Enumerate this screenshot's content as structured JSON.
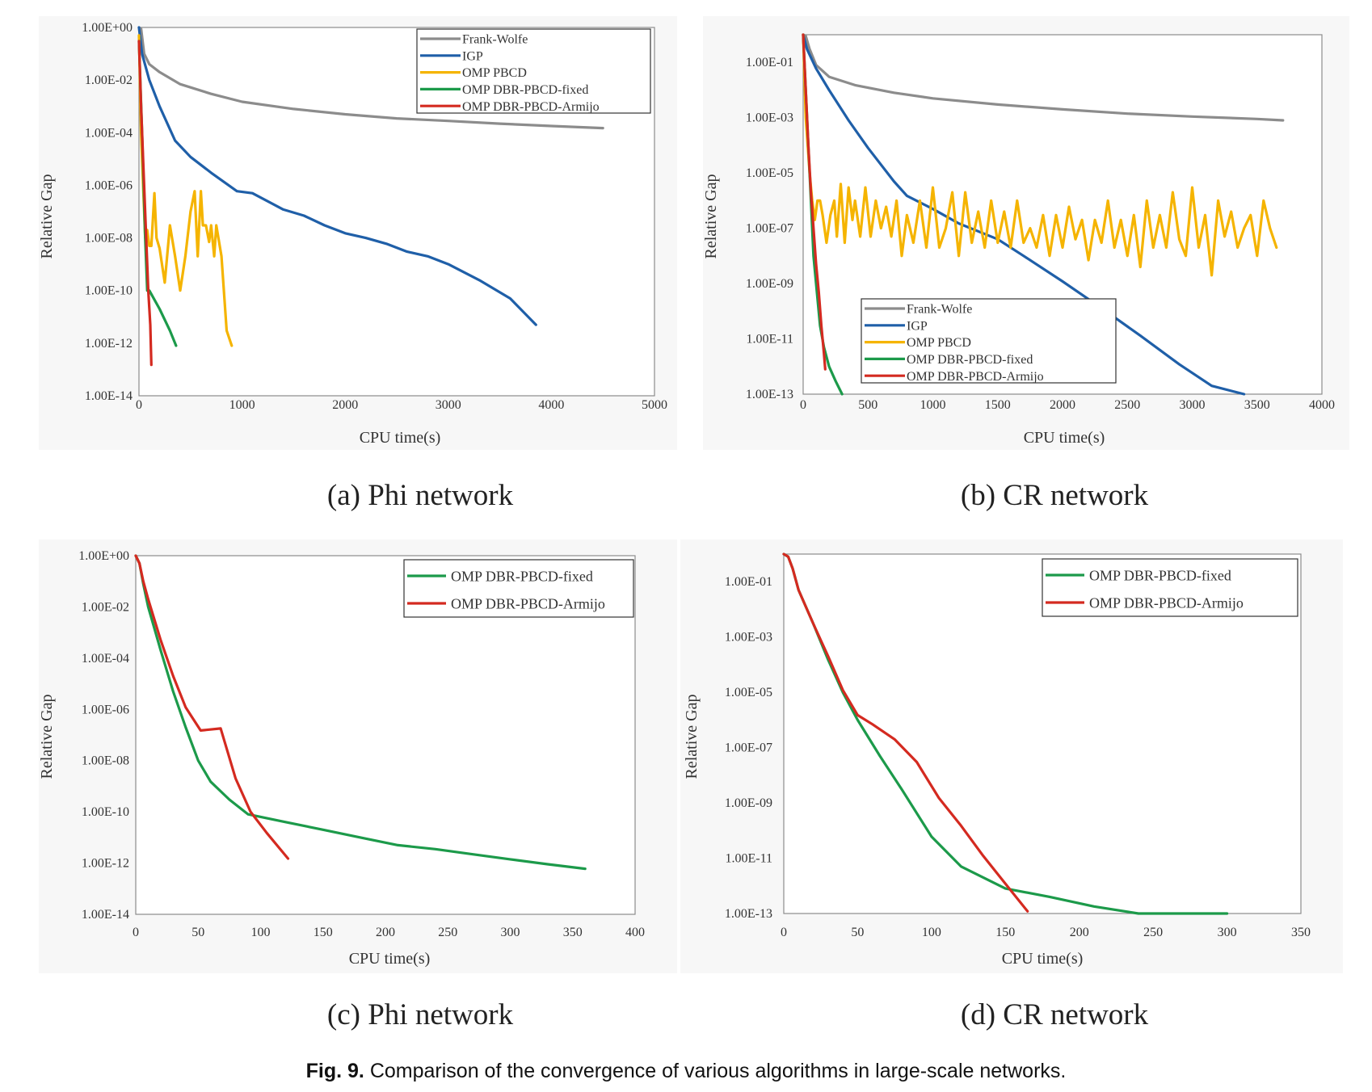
{
  "figure_caption": {
    "label": "Fig. 9.",
    "text": "Comparison of the convergence of various algorithms in large-scale networks."
  },
  "colors": {
    "Frank-Wolfe": "#8c8c8c",
    "IGP": "#1f5fa8",
    "OMP PBCD": "#f5b400",
    "OMP DBR-PBCD-fixed": "#1c9a4a",
    "OMP DBR-PBCD-Armijo": "#d42a20"
  },
  "chart_data": [
    {
      "panel": "a",
      "type": "line",
      "subtitle": "(a) Phi network",
      "xlabel": "CPU time(s)",
      "ylabel": "Relative Gap",
      "y_scale": "log",
      "xlim": [
        0,
        5000
      ],
      "ylim": [
        "1.00E-14",
        "1.00E+00"
      ],
      "xticks": [
        "0",
        "1000",
        "2000",
        "3000",
        "4000",
        "5000"
      ],
      "yticks": [
        "1.00E-14",
        "1.00E-12",
        "1.00E-10",
        "1.00E-08",
        "1.00E-06",
        "1.00E-04",
        "1.00E-02",
        "1.00E+00"
      ],
      "legend_position": "top-right",
      "legend": [
        "Frank-Wolfe",
        "IGP",
        "OMP PBCD",
        "OMP DBR-PBCD-fixed",
        "OMP DBR-PBCD-Armijo"
      ],
      "series": [
        {
          "name": "Frank-Wolfe",
          "x": [
            0,
            20,
            50,
            100,
            200,
            400,
            700,
            1000,
            1500,
            2000,
            2500,
            3000,
            3500,
            4000,
            4500
          ],
          "y": [
            1,
            0.9,
            0.1,
            0.04,
            0.02,
            0.007,
            0.003,
            0.0015,
            0.0008,
            0.0005,
            0.00035,
            0.00028,
            0.00022,
            0.00018,
            0.00015
          ]
        },
        {
          "name": "IGP",
          "x": [
            0,
            30,
            100,
            200,
            350,
            500,
            700,
            950,
            1100,
            1400,
            1600,
            1800,
            2000,
            2200,
            2400,
            2600,
            2800,
            3000,
            3300,
            3600,
            3850
          ],
          "y": [
            1,
            0.1,
            0.01,
            0.001,
            5e-05,
            1.2e-05,
            3e-06,
            6e-07,
            5e-07,
            1.2e-07,
            7e-08,
            3e-08,
            1.5e-08,
            1e-08,
            6e-09,
            3e-09,
            2e-09,
            1e-09,
            2.5e-10,
            5e-11,
            5e-12
          ]
        },
        {
          "name": "OMP PBCD",
          "x": [
            0,
            20,
            40,
            60,
            80,
            100,
            120,
            150,
            170,
            200,
            250,
            300,
            350,
            400,
            450,
            500,
            540,
            570,
            600,
            620,
            650,
            680,
            700,
            730,
            750,
            800,
            850,
            900
          ],
          "y": [
            0.5,
            0.0001,
            1e-06,
            1e-08,
            2e-08,
            5e-09,
            5e-09,
            5e-07,
            1e-08,
            4e-09,
            2e-10,
            3e-08,
            2e-09,
            1e-10,
            2e-09,
            1e-07,
            6e-07,
            2e-09,
            6e-07,
            3e-08,
            3e-08,
            7e-09,
            3e-08,
            2e-09,
            3e-08,
            2e-09,
            3e-12,
            8e-13
          ]
        },
        {
          "name": "OMP DBR-PBCD-fixed",
          "x": [
            0,
            30,
            60,
            80,
            100,
            200,
            300,
            360
          ],
          "y": [
            0.3,
            0.0001,
            1e-08,
            1e-10,
            1e-10,
            2e-11,
            3e-12,
            8e-13
          ]
        },
        {
          "name": "OMP DBR-PBCD-Armijo",
          "x": [
            0,
            20,
            40,
            70,
            90,
            110,
            120
          ],
          "y": [
            0.3,
            0.001,
            1e-05,
            1e-08,
            1e-10,
            5e-12,
            1.5e-13
          ]
        }
      ]
    },
    {
      "panel": "b",
      "type": "line",
      "subtitle": "(b) CR network",
      "xlabel": "CPU time(s)",
      "ylabel": "Relative Gap",
      "y_scale": "log",
      "xlim": [
        0,
        4000
      ],
      "ylim": [
        "1.00E-13",
        "1.00E+00"
      ],
      "xticks": [
        "0",
        "500",
        "1000",
        "1500",
        "2000",
        "2500",
        "3000",
        "3500",
        "4000"
      ],
      "yticks": [
        "1.00E-13",
        "1.00E-11",
        "1.00E-09",
        "1.00E-07",
        "1.00E-05",
        "1.00E-03",
        "1.00E-01"
      ],
      "legend_position": "bottom-left",
      "legend": [
        "Frank-Wolfe",
        "IGP",
        "OMP PBCD",
        "OMP DBR-PBCD-fixed",
        "OMP DBR-PBCD-Armijo"
      ],
      "series": [
        {
          "name": "Frank-Wolfe",
          "x": [
            0,
            20,
            50,
            100,
            200,
            400,
            700,
            1000,
            1500,
            2000,
            2500,
            3000,
            3500,
            3700
          ],
          "y": [
            1,
            0.9,
            0.3,
            0.08,
            0.03,
            0.015,
            0.008,
            0.005,
            0.003,
            0.002,
            0.0014,
            0.0011,
            0.0009,
            0.0008
          ]
        },
        {
          "name": "IGP",
          "x": [
            0,
            30,
            100,
            200,
            350,
            500,
            700,
            800,
            1000,
            1200,
            1500,
            1700,
            2000,
            2300,
            2600,
            2900,
            3150,
            3400
          ],
          "y": [
            1,
            0.3,
            0.06,
            0.01,
            0.0008,
            8e-05,
            5e-06,
            1.5e-06,
            5e-07,
            1.5e-07,
            4e-08,
            1e-08,
            1.2e-09,
            1.3e-10,
            1.3e-11,
            1.2e-12,
            2e-13,
            6e-14
          ]
        },
        {
          "name": "OMP PBCD",
          "x": [
            0,
            20,
            50,
            70,
            90,
            110,
            130,
            150,
            180,
            210,
            240,
            260,
            290,
            320,
            350,
            380,
            400,
            440,
            480,
            520,
            560,
            600,
            640,
            680,
            720,
            760,
            800,
            850,
            900,
            950,
            1000,
            1050,
            1100,
            1150,
            1200,
            1250,
            1300,
            1350,
            1400,
            1450,
            1500,
            1550,
            1600,
            1650,
            1700,
            1750,
            1800,
            1850,
            1900,
            1950,
            2000,
            2050,
            2100,
            2150,
            2200,
            2250,
            2300,
            2350,
            2400,
            2450,
            2500,
            2550,
            2600,
            2650,
            2700,
            2750,
            2800,
            2850,
            2900,
            2950,
            3000,
            3050,
            3100,
            3150,
            3200,
            3250,
            3300,
            3350,
            3400,
            3450,
            3500,
            3550,
            3600,
            3650
          ],
          "y": [
            1,
            0.001,
            1e-05,
            1e-06,
            2e-07,
            1e-06,
            1e-06,
            3e-07,
            3e-08,
            3e-07,
            1e-06,
            5e-08,
            4e-06,
            3e-08,
            3e-06,
            2e-07,
            1e-06,
            5e-08,
            3e-06,
            5e-08,
            1e-06,
            1e-07,
            6e-07,
            5e-08,
            1e-06,
            1e-08,
            3e-07,
            3e-08,
            1e-06,
            2e-08,
            3e-06,
            2e-08,
            1e-07,
            2e-06,
            1e-08,
            2e-06,
            3e-08,
            4e-07,
            2e-08,
            1e-06,
            3e-08,
            4e-07,
            2e-08,
            1e-06,
            3e-08,
            1e-07,
            2e-08,
            3e-07,
            1e-08,
            3e-07,
            2e-08,
            6e-07,
            4e-08,
            2e-07,
            7e-09,
            2e-07,
            3e-08,
            1e-06,
            2e-08,
            2e-07,
            1e-08,
            3e-07,
            4e-09,
            1e-06,
            2e-08,
            3e-07,
            2e-08,
            2e-06,
            4e-08,
            1e-08,
            3e-06,
            2e-08,
            3e-07,
            2e-09,
            1e-06,
            5e-08,
            4e-07,
            2e-08,
            1e-07,
            3e-07,
            1e-08,
            1e-06,
            1e-07,
            2e-08
          ]
        },
        {
          "name": "OMP DBR-PBCD-fixed",
          "x": [
            0,
            20,
            40,
            60,
            80,
            100,
            130,
            160,
            200,
            250,
            300
          ],
          "y": [
            1,
            0.01,
            0.0001,
            1e-06,
            1e-08,
            1e-09,
            3e-11,
            5e-12,
            1e-12,
            3e-13,
            1e-13
          ]
        },
        {
          "name": "OMP DBR-PBCD-Armijo",
          "x": [
            0,
            20,
            40,
            60,
            80,
            100,
            120,
            140,
            160,
            170
          ],
          "y": [
            1,
            0.01,
            0.0001,
            2e-06,
            1e-07,
            5e-09,
            5e-10,
            3e-11,
            3e-12,
            8e-13
          ]
        }
      ]
    },
    {
      "panel": "c",
      "type": "line",
      "subtitle": "(c) Phi network",
      "xlabel": "CPU time(s)",
      "ylabel": "Relative Gap",
      "y_scale": "log",
      "xlim": [
        0,
        400
      ],
      "ylim": [
        "1.00E-14",
        "1.00E+00"
      ],
      "xticks": [
        "0",
        "50",
        "100",
        "150",
        "200",
        "250",
        "300",
        "350",
        "400"
      ],
      "yticks": [
        "1.00E-14",
        "1.00E-12",
        "1.00E-10",
        "1.00E-08",
        "1.00E-06",
        "1.00E-04",
        "1.00E-02",
        "1.00E+00"
      ],
      "legend_position": "top-right",
      "legend": [
        "OMP DBR-PBCD-fixed",
        "OMP DBR-PBCD-Armijo"
      ],
      "series": [
        {
          "name": "OMP DBR-PBCD-fixed",
          "x": [
            0,
            3,
            6,
            10,
            20,
            30,
            40,
            50,
            60,
            75,
            90,
            120,
            150,
            180,
            210,
            240,
            270,
            300,
            330,
            360
          ],
          "y": [
            1,
            0.5,
            0.08,
            0.01,
            0.0002,
            5e-06,
            2e-07,
            1e-08,
            1.5e-09,
            3e-10,
            8e-11,
            4e-11,
            2e-11,
            1e-11,
            5e-12,
            3.5e-12,
            2.2e-12,
            1.4e-12,
            9e-13,
            6e-13
          ]
        },
        {
          "name": "OMP DBR-PBCD-Armijo",
          "x": [
            0,
            3,
            6,
            10,
            20,
            30,
            40,
            52,
            68,
            80,
            92,
            105,
            122
          ],
          "y": [
            1,
            0.5,
            0.1,
            0.02,
            0.0005,
            2e-05,
            1.2e-06,
            1.5e-07,
            1.8e-07,
            2e-09,
            1e-10,
            1.5e-11,
            1.5e-12
          ]
        }
      ]
    },
    {
      "panel": "d",
      "type": "line",
      "subtitle": "(d) CR network",
      "xlabel": "CPU time(s)",
      "ylabel": "Relative Gap",
      "y_scale": "log",
      "xlim": [
        0,
        350
      ],
      "ylim": [
        "1.00E-13",
        "1.00E+00"
      ],
      "xticks": [
        "0",
        "50",
        "100",
        "150",
        "200",
        "250",
        "300",
        "350"
      ],
      "yticks": [
        "1.00E-13",
        "1.00E-11",
        "1.00E-09",
        "1.00E-07",
        "1.00E-05",
        "1.00E-03",
        "1.00E-01"
      ],
      "legend_position": "top-right",
      "legend": [
        "OMP DBR-PBCD-fixed",
        "OMP DBR-PBCD-Armijo"
      ],
      "series": [
        {
          "name": "OMP DBR-PBCD-fixed",
          "x": [
            0,
            3,
            6,
            10,
            20,
            30,
            40,
            50,
            65,
            80,
            100,
            120,
            150,
            180,
            210,
            240,
            270,
            300
          ],
          "y": [
            1,
            0.8,
            0.3,
            0.05,
            0.003,
            0.00015,
            1e-05,
            1e-06,
            5e-08,
            3e-09,
            6e-11,
            5e-12,
            8e-13,
            4e-13,
            1.8e-13,
            9e-14,
            5e-14,
            3e-14
          ]
        },
        {
          "name": "OMP DBR-PBCD-Armijo",
          "x": [
            0,
            3,
            6,
            10,
            20,
            30,
            40,
            50,
            60,
            75,
            90,
            105,
            120,
            135,
            150,
            165
          ],
          "y": [
            1,
            0.8,
            0.3,
            0.05,
            0.003,
            0.0002,
            1.2e-05,
            1.5e-06,
            7e-07,
            2e-07,
            3e-08,
            1.5e-09,
            1.5e-10,
            1.2e-11,
            1.2e-12,
            1.2e-13
          ]
        }
      ]
    }
  ]
}
